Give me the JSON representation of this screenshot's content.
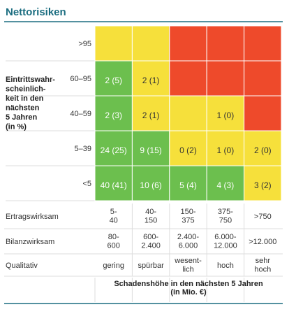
{
  "header": {
    "title": "Nettorisiken"
  },
  "matrix": {
    "y_label": [
      "Eintrittswahr-",
      "scheinlich-",
      "keit in den",
      "nächsten",
      "5 Jahren",
      "(in %)"
    ],
    "rows": [
      {
        "label": ">95",
        "cells": [
          {
            "color": "#f6e03b"
          },
          {
            "color": "#f6e03b"
          },
          {
            "color": "#ee4a2b"
          },
          {
            "color": "#ee4a2b"
          },
          {
            "color": "#ee4a2b"
          }
        ]
      },
      {
        "label": "60–95",
        "cells": [
          {
            "color": "#6cbf4e",
            "label": "2 (5)"
          },
          {
            "color": "#f6e03b",
            "label": "2 (1)"
          },
          {
            "color": "#ee4a2b"
          },
          {
            "color": "#ee4a2b"
          },
          {
            "color": "#ee4a2b"
          }
        ]
      },
      {
        "label": "40–59",
        "cells": [
          {
            "color": "#6cbf4e",
            "label": "2 (3)"
          },
          {
            "color": "#f6e03b",
            "label": "2 (1)"
          },
          {
            "color": "#f6e03b"
          },
          {
            "color": "#f6e03b",
            "label": "1 (0)"
          },
          {
            "color": "#ee4a2b"
          }
        ]
      },
      {
        "label": "5–39",
        "cells": [
          {
            "color": "#6cbf4e",
            "label": "24 (25)"
          },
          {
            "color": "#6cbf4e",
            "label": "9 (15)"
          },
          {
            "color": "#f6e03b",
            "label": "0 (2)"
          },
          {
            "color": "#f6e03b",
            "label": "1 (0)"
          },
          {
            "color": "#f6e03b",
            "label": "2 (0)"
          }
        ]
      },
      {
        "label": "<5",
        "cells": [
          {
            "color": "#6cbf4e",
            "label": "40 (41)"
          },
          {
            "color": "#6cbf4e",
            "label": "10 (6)"
          },
          {
            "color": "#6cbf4e",
            "label": "5 (4)"
          },
          {
            "color": "#6cbf4e",
            "label": "4 (3)"
          },
          {
            "color": "#f6e03b",
            "label": "3 (2)"
          }
        ]
      }
    ]
  },
  "scale": {
    "rows": [
      {
        "label": "Ertragswirksam",
        "values": [
          [
            "5-",
            "40"
          ],
          [
            "40-",
            "150"
          ],
          [
            "150-",
            "375"
          ],
          [
            "375-",
            "750"
          ],
          [
            ">750"
          ]
        ]
      },
      {
        "label": "Bilanzwirksam",
        "values": [
          [
            "80-",
            "600"
          ],
          [
            "600-",
            "2.400"
          ],
          [
            "2.400-",
            "6.000"
          ],
          [
            "6.000-",
            "12.000"
          ],
          [
            ">12.000"
          ]
        ]
      },
      {
        "label": "Qualitativ",
        "values": [
          [
            "gering"
          ],
          [
            "spürbar"
          ],
          [
            "wesent-",
            "lich"
          ],
          [
            "hoch"
          ],
          [
            "sehr",
            "hoch"
          ]
        ]
      }
    ],
    "caption": [
      "Schadenshöhe in den nächsten 5 Jahren",
      "(in Mio. €)"
    ]
  }
}
